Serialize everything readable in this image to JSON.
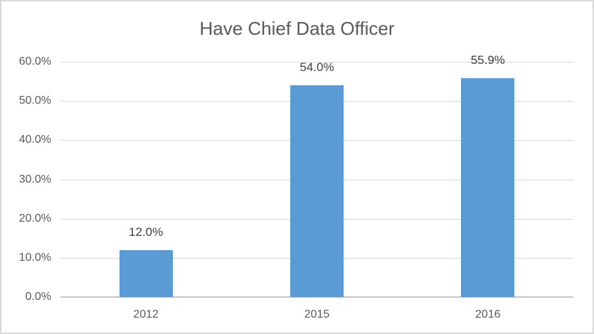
{
  "chart_data": {
    "type": "bar",
    "title": "Have Chief Data Officer",
    "categories": [
      "2012",
      "2015",
      "2016"
    ],
    "values": [
      12.0,
      54.0,
      55.9
    ],
    "data_labels": [
      "12.0%",
      "54.0%",
      "55.9%"
    ],
    "y_ticks": [
      {
        "value": 0,
        "label": "0.0%"
      },
      {
        "value": 10,
        "label": "10.0%"
      },
      {
        "value": 20,
        "label": "20.0%"
      },
      {
        "value": 30,
        "label": "30.0%"
      },
      {
        "value": 40,
        "label": "40.0%"
      },
      {
        "value": 50,
        "label": "50.0%"
      },
      {
        "value": 60,
        "label": "60.0%"
      }
    ],
    "ylim": [
      0,
      60
    ],
    "xlabel": "",
    "ylabel": "",
    "grid": true,
    "legend": "none",
    "colors": {
      "bar": "#5B9BD5",
      "title_text": "#595959",
      "axis_text": "#595959",
      "data_label_text": "#404040",
      "gridline": "#D6D6D6",
      "axis_line": "#C6C6C6",
      "chart_border": "#D9D9D9",
      "background": "#FFFFFF"
    }
  }
}
